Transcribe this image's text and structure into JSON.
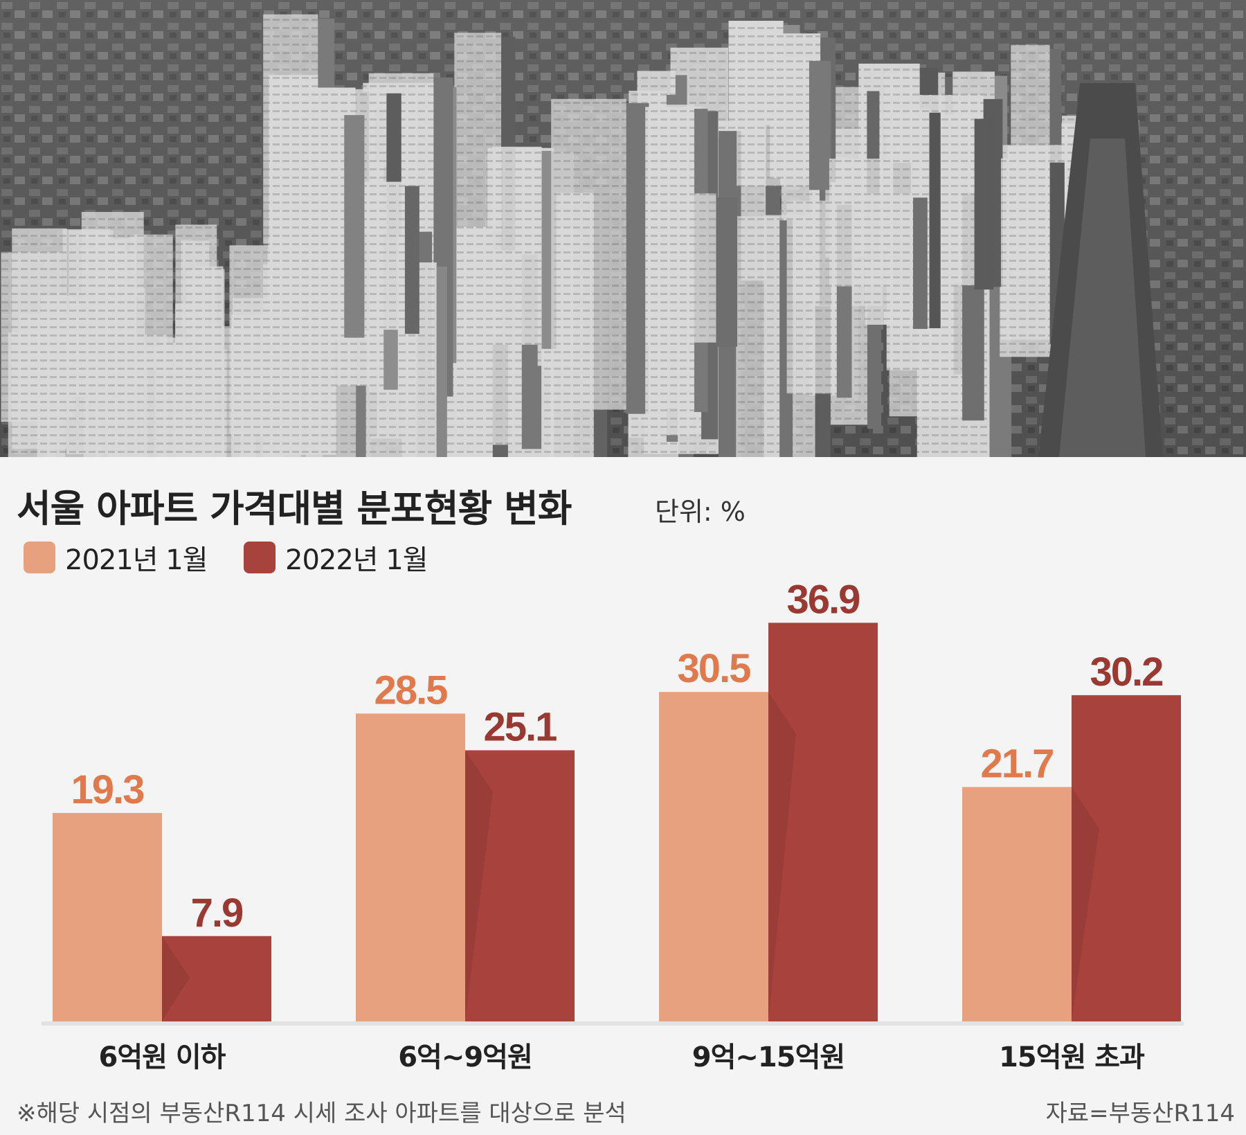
{
  "photo": {
    "icon": "aerial-apartment-city-photo"
  },
  "header": {
    "title": "서울 아파트 가격대별 분포현황 변화",
    "unit": "단위: %"
  },
  "legend": [
    {
      "label": "2021년 1월",
      "color": "#e8a17f"
    },
    {
      "label": "2022년 1월",
      "color": "#a8423d"
    }
  ],
  "colors": {
    "series1_label": "#e07a4c",
    "series2_label": "#9a3832",
    "background": "#f4f4f4"
  },
  "chart_data": {
    "type": "bar",
    "title": "서울 아파트 가격대별 분포현황 변화",
    "unit": "단위: %",
    "categories": [
      "6억원 이하",
      "6억~9억원",
      "9억~15억원",
      "15억원 초과"
    ],
    "series": [
      {
        "name": "2021년 1월",
        "values": [
          19.3,
          28.5,
          30.5,
          21.7
        ]
      },
      {
        "name": "2022년 1월",
        "values": [
          7.9,
          25.1,
          36.9,
          30.2
        ]
      }
    ],
    "ylim": [
      0,
      40
    ],
    "grid": false,
    "legend_position": "top-left"
  },
  "footer": {
    "note": "※해당 시점의 부동산R114 시세 조사 아파트를 대상으로 분석",
    "source": "자료=부동산R114"
  }
}
